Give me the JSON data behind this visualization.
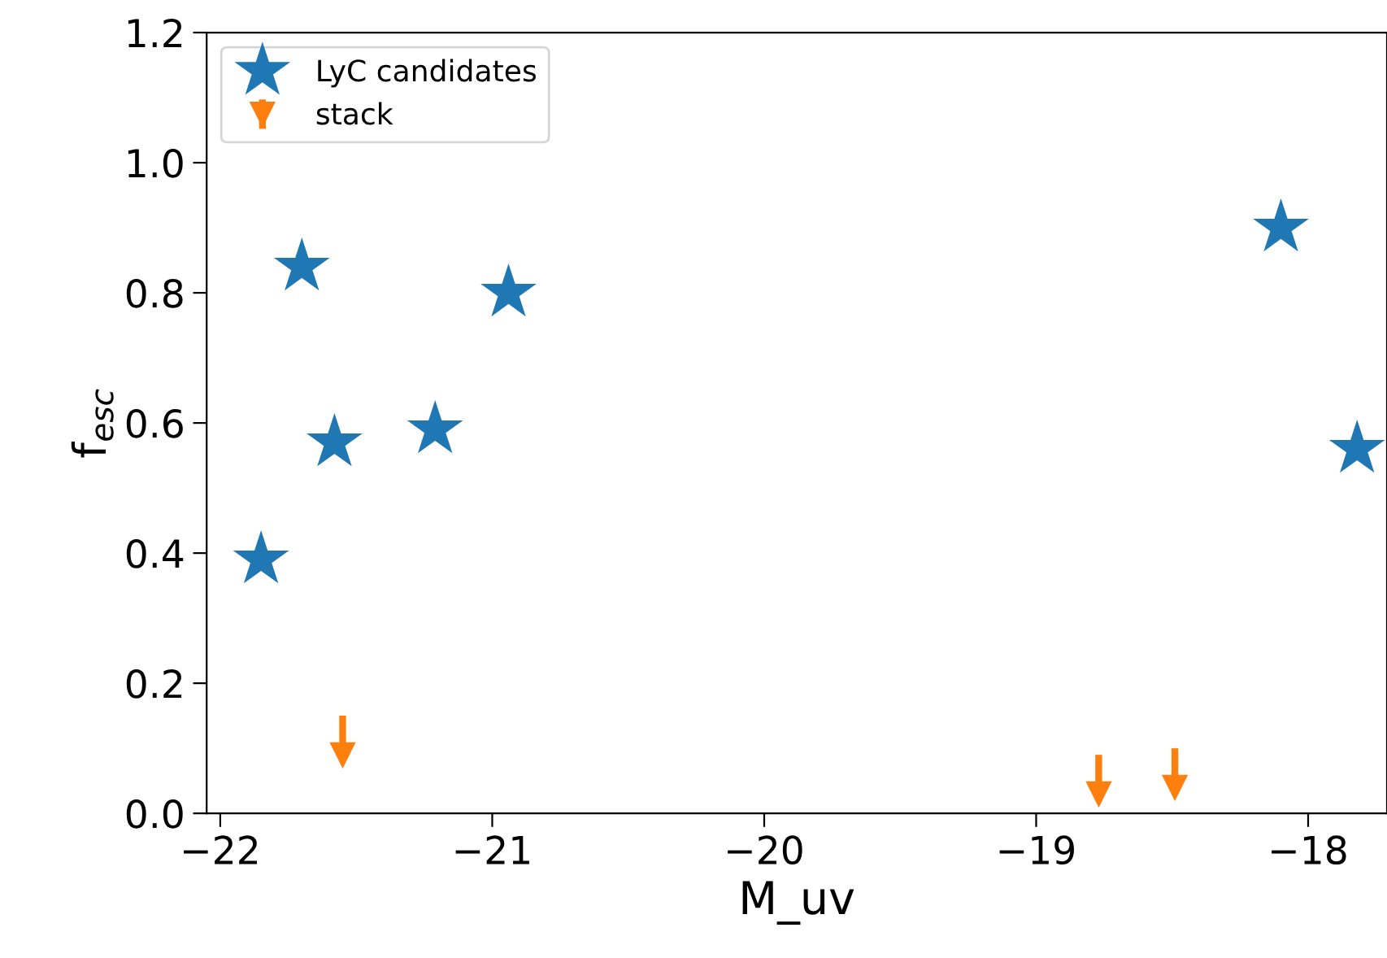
{
  "chart_data": {
    "type": "scatter",
    "xlabel": "M_uv",
    "ylabel": "f$_{esc}$",
    "xlim": [
      -22.05,
      -17.71
    ],
    "ylim": [
      0,
      1.2
    ],
    "xticks": [
      {
        "value": -22,
        "label": "−22"
      },
      {
        "value": -21,
        "label": "−21"
      },
      {
        "value": -20,
        "label": "−20"
      },
      {
        "value": -19,
        "label": "−19"
      },
      {
        "value": -18,
        "label": "−18"
      }
    ],
    "yticks": [
      {
        "value": 0,
        "label": "0.0"
      },
      {
        "value": 0.2,
        "label": "0.2"
      },
      {
        "value": 0.4,
        "label": "0.4"
      },
      {
        "value": 0.6,
        "label": "0.6"
      },
      {
        "value": 0.8,
        "label": "0.8"
      },
      {
        "value": 1.0,
        "label": "1.0"
      },
      {
        "value": 1.2,
        "label": "1.2"
      }
    ],
    "grid": false,
    "legend": "top left",
    "series": [
      {
        "name": "LyC candidates",
        "color": "#1f77b4",
        "marker": "star",
        "x": [
          -21.85,
          -21.7,
          -21.58,
          -21.21,
          -20.94,
          -18.1,
          -17.82
        ],
        "values": [
          0.39,
          0.84,
          0.57,
          0.59,
          0.8,
          0.9,
          0.56
        ]
      },
      {
        "name": "stack",
        "color": "#ff7f0e",
        "marker": "triangle",
        "x": [
          -21.55,
          -18.77,
          -18.49
        ],
        "values": [
          0.09,
          0.03,
          0.04
        ],
        "errors": [
          [
            0.09,
            0.15
          ],
          [
            0.03,
            0.09
          ],
          [
            0.04,
            0.1
          ]
        ]
      }
    ]
  }
}
